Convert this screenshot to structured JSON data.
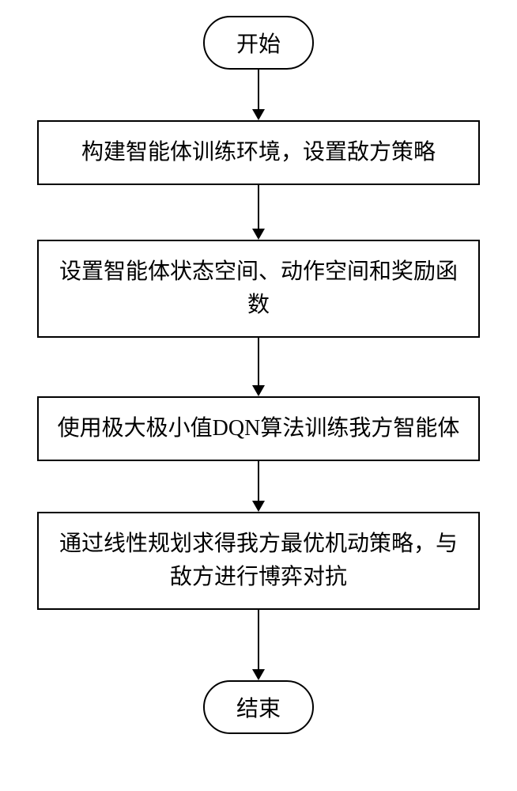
{
  "flowchart": {
    "type": "flowchart",
    "background_color": "#ffffff",
    "border_color": "#000000",
    "border_width": 2,
    "font_size": 28,
    "font_family": "SimSun",
    "text_color": "#000000",
    "terminal_border_radius": 40,
    "process_width": 560,
    "arrow_color": "#000000",
    "arrow_head_size": 14,
    "nodes": {
      "start": {
        "type": "terminal",
        "label": "开始"
      },
      "step1": {
        "type": "process",
        "label": "构建智能体训练环境，设置敌方策略"
      },
      "step2": {
        "type": "process",
        "label": "设置智能体状态空间、动作空间和奖励函数"
      },
      "step3": {
        "type": "process",
        "label": "使用极大极小值DQN算法训练我方智能体"
      },
      "step4": {
        "type": "process",
        "label": "通过线性规划求得我方最优机动策略，与敌方进行博弈对抗"
      },
      "end": {
        "type": "terminal",
        "label": "结束"
      }
    },
    "edges": [
      {
        "from": "start",
        "to": "step1",
        "length": 50
      },
      {
        "from": "step1",
        "to": "step2",
        "length": 55
      },
      {
        "from": "step2",
        "to": "step3",
        "length": 60
      },
      {
        "from": "step3",
        "to": "step4",
        "length": 50
      },
      {
        "from": "step4",
        "to": "end",
        "length": 75
      }
    ]
  }
}
